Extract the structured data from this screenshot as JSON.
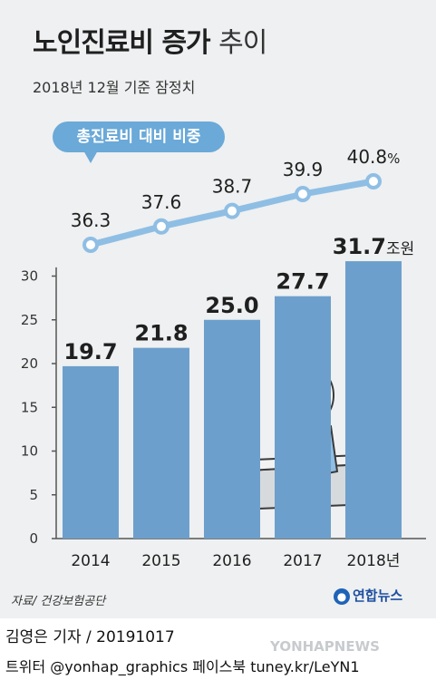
{
  "title_main": "노인진료비 증가",
  "title_tail": "추이",
  "subtitle": "2018년 12월 기준 잠정치",
  "pill_label": "총진료비 대비 비중",
  "unit_bar": "조원",
  "unit_line": "%",
  "source": "자료/ 건강보험공단",
  "logo": "연합뉴스",
  "credit_line1": "김영은 기자 / 20191017",
  "credit_line2": "트위터 @yonhap_graphics  페이스북 tuney.kr/LeYN1",
  "watermark": "YONHAPNEWS",
  "chart_data": {
    "type": "bar",
    "categories": [
      "2014",
      "2015",
      "2016",
      "2017",
      "2018년"
    ],
    "series": [
      {
        "values": [
          19.7,
          21.8,
          25.0,
          27.7,
          31.7
        ]
      },
      {
        "type": "line",
        "values": [
          36.3,
          37.6,
          38.7,
          39.9,
          40.8
        ]
      }
    ],
    "value_labels": [
      "19.7",
      "21.8",
      "25.0",
      "27.7",
      "31.7"
    ],
    "line_labels": [
      "36.3",
      "37.6",
      "38.7",
      "39.9",
      "40.8"
    ],
    "ylim": [
      0,
      30
    ],
    "yticks": [
      0,
      5,
      10,
      15,
      20,
      25,
      30
    ],
    "grid": false,
    "colors": {
      "bar": "#6d9fcc",
      "line": "#8fbee4",
      "axis": "#555555"
    }
  }
}
